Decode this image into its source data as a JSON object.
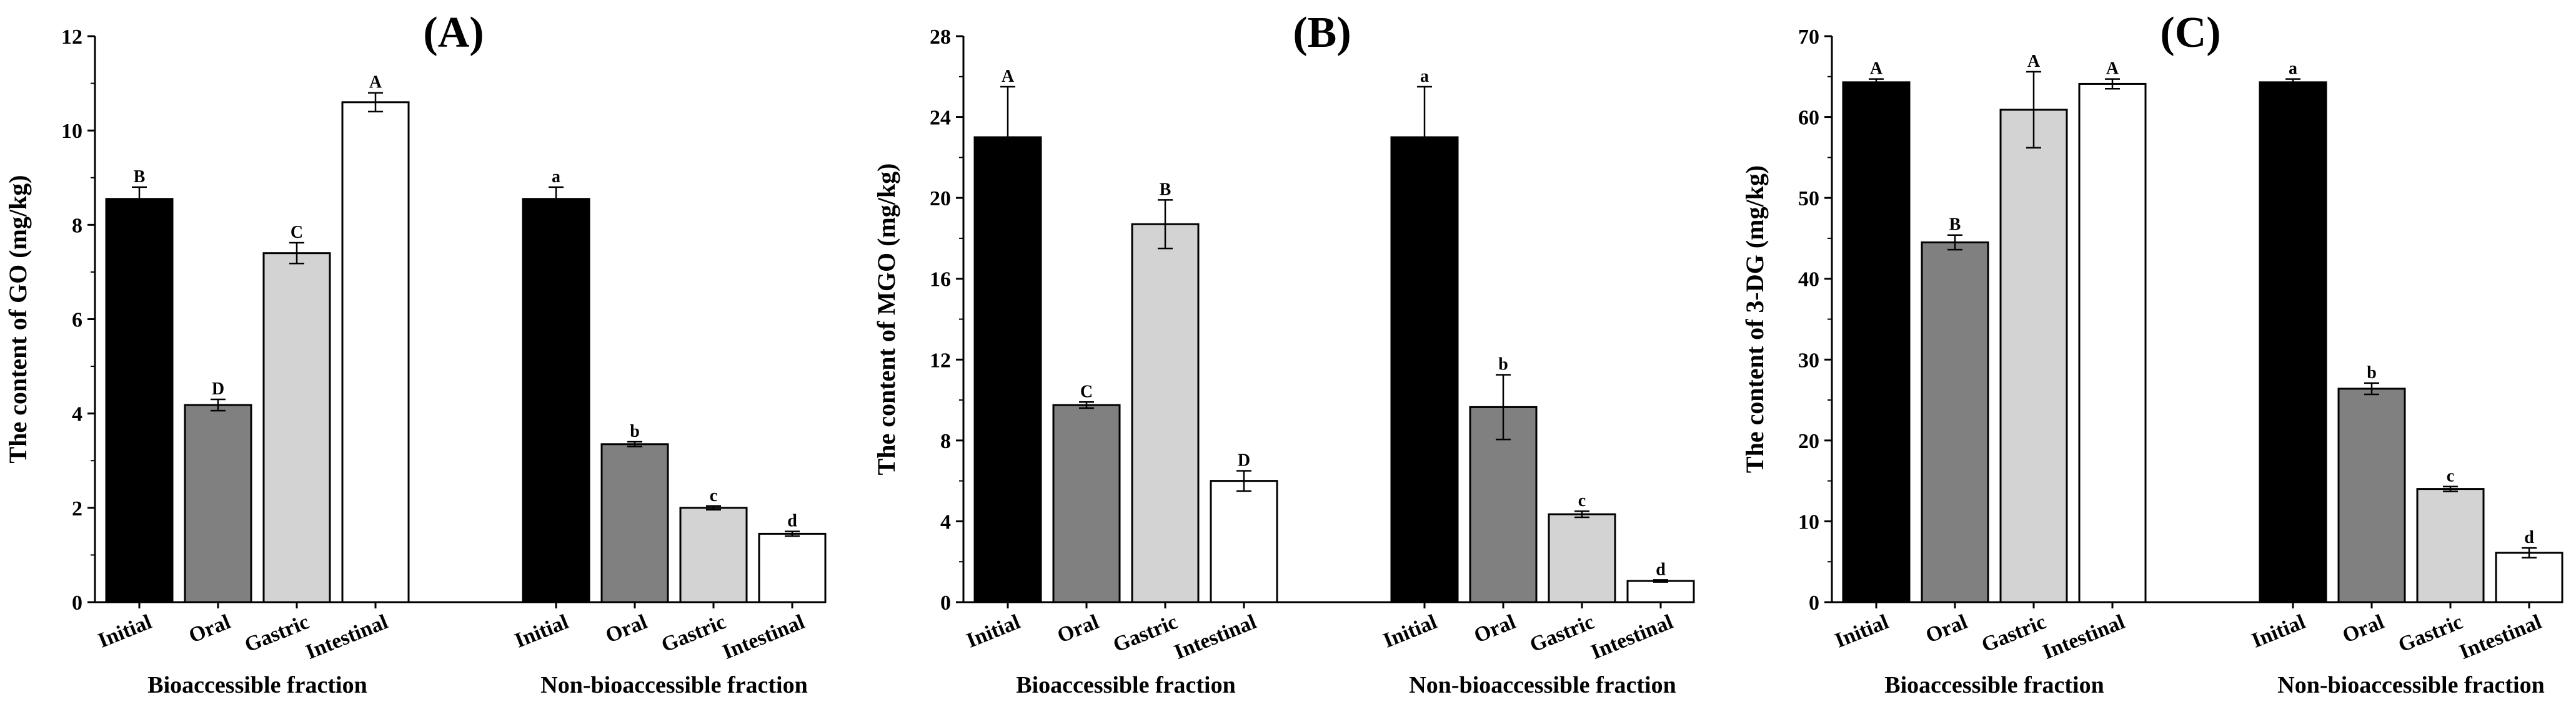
{
  "figure": {
    "panels_count": 3,
    "group_labels": [
      "Bioaccessible  fraction",
      "Non-bioaccessible  fraction"
    ],
    "colors": {
      "Initial": "#000000",
      "Oral": "#808080",
      "Gastric": "#d3d3d3",
      "Intestinal": "#ffffff",
      "outline": "#000000"
    }
  },
  "chart_data": [
    {
      "type": "bar",
      "panel_label": "(A)",
      "ylabel": "The content of GO (mg/kg)",
      "ylim": [
        0,
        12
      ],
      "yticks": [
        "0",
        "2",
        "4",
        "6",
        "8",
        "10",
        "12"
      ],
      "groups": [
        {
          "name": "Bioaccessible  fraction",
          "categories": [
            "Initial",
            "Oral",
            "Gastric",
            "Intestinal"
          ],
          "values": [
            8.55,
            4.18,
            7.4,
            10.6
          ],
          "errors": [
            0.25,
            0.12,
            0.22,
            0.2
          ],
          "letters": [
            "B",
            "D",
            "C",
            "A"
          ]
        },
        {
          "name": "Non-bioaccessible  fraction",
          "categories": [
            "Initial",
            "Oral",
            "Gastric",
            "Intestinal"
          ],
          "values": [
            8.55,
            3.35,
            2.0,
            1.45
          ],
          "errors": [
            0.25,
            0.05,
            0.04,
            0.05
          ],
          "letters": [
            "a",
            "b",
            "c",
            "d"
          ]
        }
      ]
    },
    {
      "type": "bar",
      "panel_label": "(B)",
      "ylabel": "The content of MGO (mg/kg)",
      "ylim": [
        0,
        28
      ],
      "yticks": [
        "0",
        "4",
        "8",
        "12",
        "16",
        "20",
        "24",
        "28"
      ],
      "groups": [
        {
          "name": "Bioaccessible  fraction",
          "categories": [
            "Initial",
            "Oral",
            "Gastric",
            "Intestinal"
          ],
          "values": [
            23.0,
            9.75,
            18.7,
            6.0
          ],
          "errors": [
            2.5,
            0.15,
            1.2,
            0.5
          ],
          "letters": [
            "A",
            "C",
            "B",
            "D"
          ]
        },
        {
          "name": "Non-bioaccessible  fraction",
          "categories": [
            "Initial",
            "Oral",
            "Gastric",
            "Intestinal"
          ],
          "values": [
            23.0,
            9.65,
            4.35,
            1.05
          ],
          "errors": [
            2.5,
            1.6,
            0.15,
            0.05
          ],
          "letters": [
            "a",
            "b",
            "c",
            "d"
          ]
        }
      ]
    },
    {
      "type": "bar",
      "panel_label": "(C)",
      "ylabel": "The content of 3-DG (mg/kg)",
      "ylim": [
        0,
        70
      ],
      "yticks": [
        "0",
        "10",
        "20",
        "30",
        "40",
        "50",
        "60",
        "70"
      ],
      "groups": [
        {
          "name": "Bioaccessible  fraction",
          "categories": [
            "Initial",
            "Oral",
            "Gastric",
            "Intestinal"
          ],
          "values": [
            64.3,
            44.5,
            60.9,
            64.1
          ],
          "errors": [
            0.4,
            0.9,
            4.7,
            0.6
          ],
          "letters": [
            "A",
            "B",
            "A",
            "A"
          ]
        },
        {
          "name": "Non-bioaccessible  fraction",
          "categories": [
            "Initial",
            "Oral",
            "Gastric",
            "Intestinal"
          ],
          "values": [
            64.3,
            26.4,
            14.0,
            6.1
          ],
          "errors": [
            0.4,
            0.7,
            0.3,
            0.6
          ],
          "letters": [
            "a",
            "b",
            "c",
            "d"
          ]
        }
      ]
    }
  ]
}
